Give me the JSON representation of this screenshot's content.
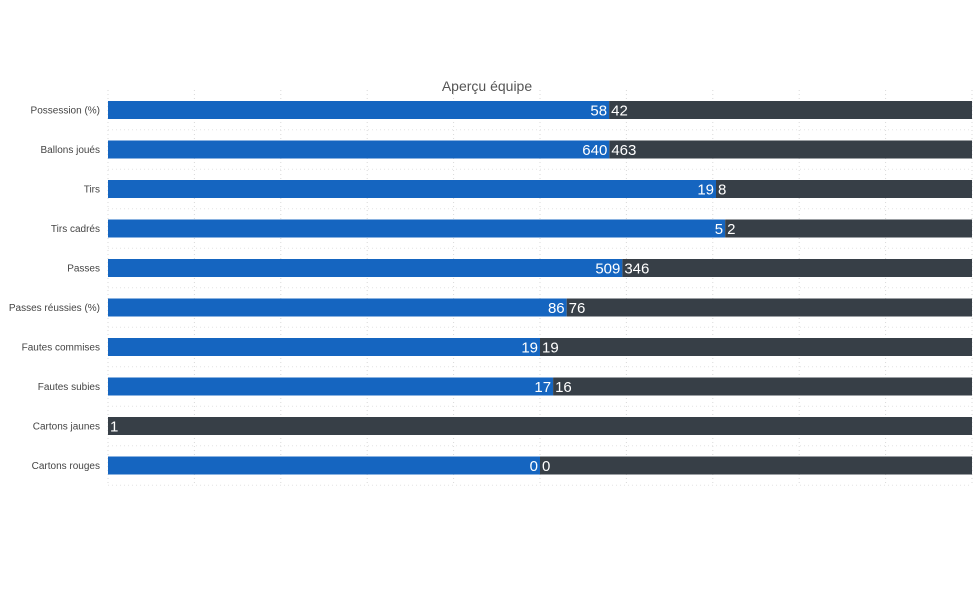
{
  "chart_data": {
    "type": "bar",
    "stacked": "percent",
    "orientation": "horizontal",
    "title": "Aperçu équipe",
    "categories": [
      "Possession (%)",
      "Ballons joués",
      "Tirs",
      "Tirs cadrés",
      "Passes",
      "Passes réussies (%)",
      "Fautes commises",
      "Fautes subies",
      "Cartons jaunes",
      "Cartons rouges"
    ],
    "series": [
      {
        "values": [
          58,
          640,
          19,
          5,
          509,
          86,
          19,
          17,
          0,
          0
        ]
      },
      {
        "values": [
          42,
          463,
          8,
          2,
          346,
          76,
          19,
          16,
          1,
          0
        ]
      }
    ],
    "data_labels": [
      [
        "58",
        "640",
        "19",
        "5",
        "509",
        "86",
        "19",
        "17",
        "",
        "0"
      ],
      [
        "42",
        "463",
        "8",
        "2",
        "346",
        "76",
        "19",
        "16",
        "1",
        "0"
      ]
    ],
    "series_colors": [
      "#1565c0",
      "#373f47"
    ],
    "grid": true,
    "legend": "none"
  }
}
